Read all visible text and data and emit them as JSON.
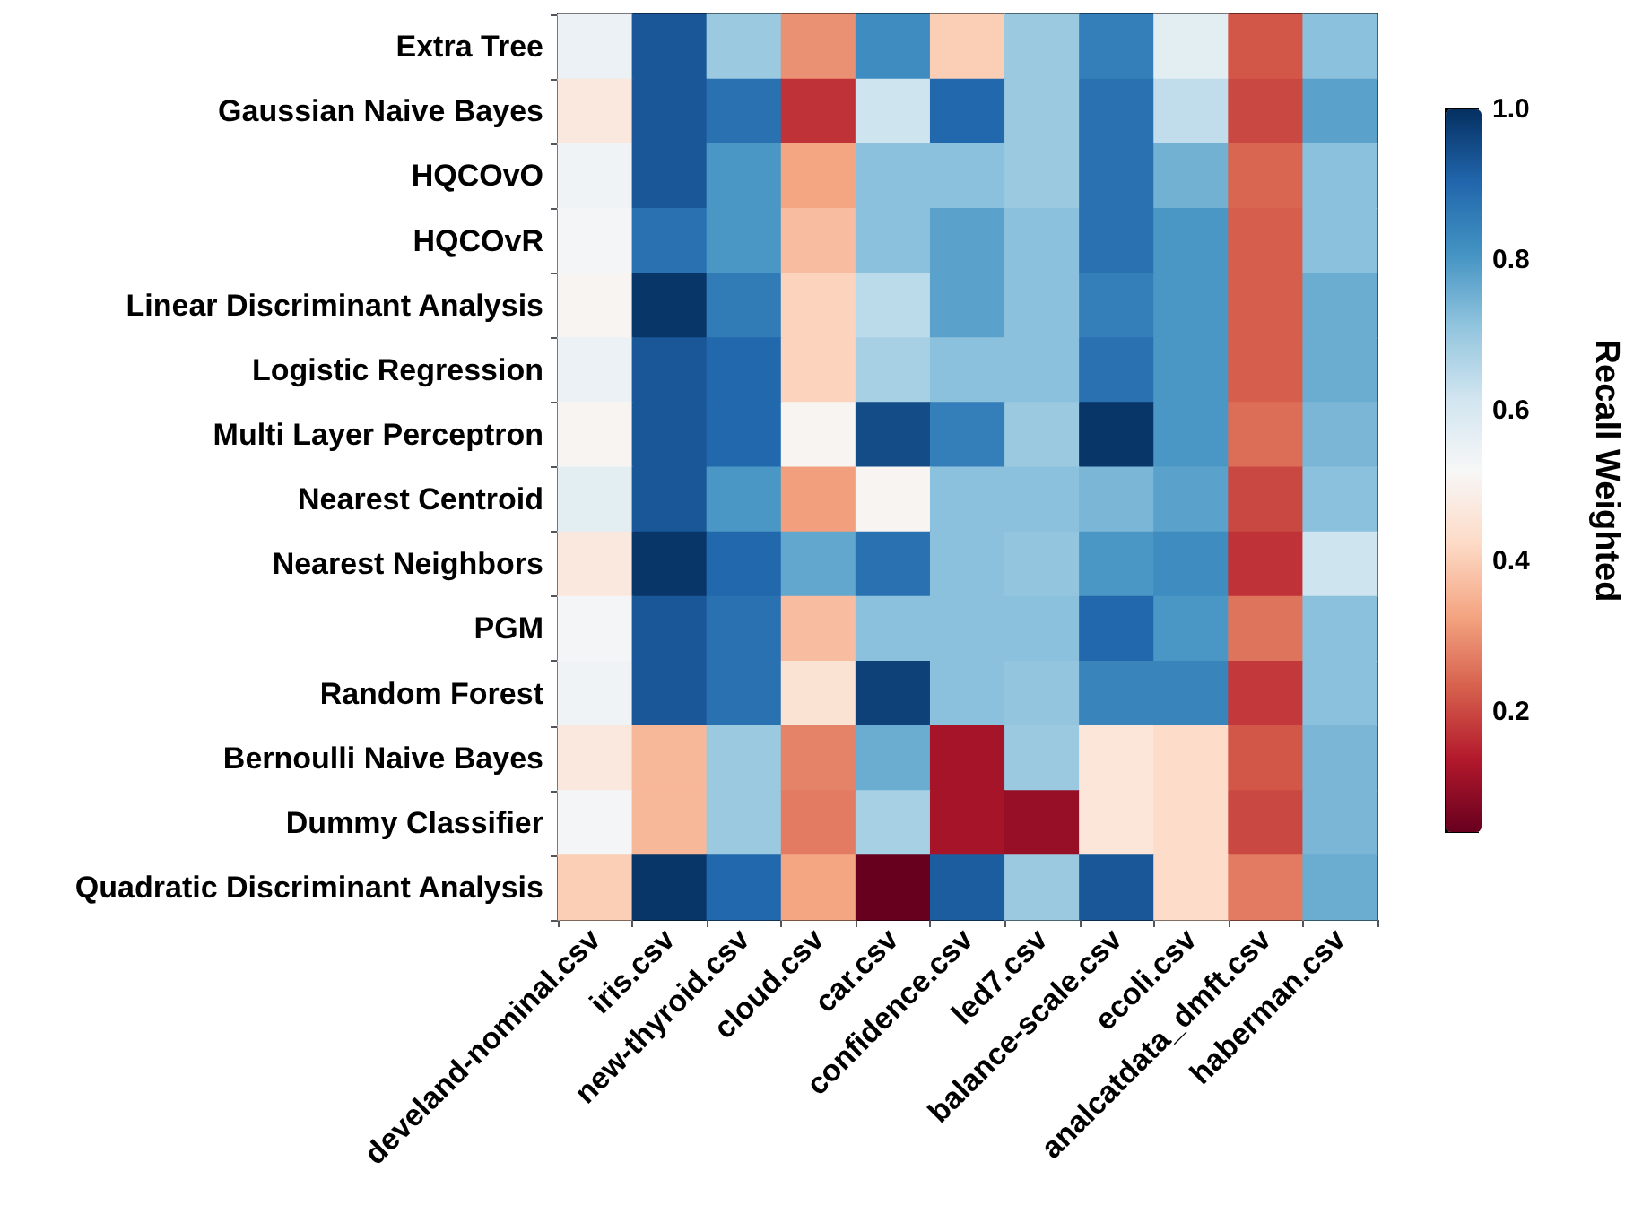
{
  "chart_data": {
    "type": "heatmap",
    "clabel": "Recall Weighted",
    "categories": [
      "develand-nominal.csv",
      "iris.csv",
      "new-thyroid.csv",
      "cloud.csv",
      "car.csv",
      "confidence.csv",
      "led7.csv",
      "balance-scale.csv",
      "ecoli.csv",
      "analcatdata_dmft.csv",
      "haberman.csv"
    ],
    "y_categories": [
      "Extra Tree",
      "Gaussian Naive Bayes",
      "HQCOvO",
      "HQCOvR",
      "Linear Discriminant Analysis",
      "Logistic Regression",
      "Multi Layer Perceptron",
      "Nearest Centroid",
      "Nearest Neighbors",
      "PGM",
      "Random Forest",
      "Bernoulli Naive Bayes",
      "Dummy Classifier",
      "Quadratic Discriminant Analysis"
    ],
    "cells": [
      [
        0.55,
        0.93,
        0.7,
        0.3,
        0.82,
        0.4,
        0.7,
        0.85,
        0.57,
        0.22,
        0.72
      ],
      [
        0.47,
        0.93,
        0.88,
        0.17,
        0.62,
        0.9,
        0.7,
        0.88,
        0.64,
        0.2,
        0.78
      ],
      [
        0.54,
        0.93,
        0.8,
        0.33,
        0.72,
        0.72,
        0.7,
        0.88,
        0.75,
        0.24,
        0.72
      ],
      [
        0.53,
        0.88,
        0.8,
        0.37,
        0.72,
        0.78,
        0.72,
        0.88,
        0.8,
        0.23,
        0.72
      ],
      [
        0.51,
        0.99,
        0.86,
        0.41,
        0.65,
        0.78,
        0.72,
        0.85,
        0.8,
        0.23,
        0.76
      ],
      [
        0.55,
        0.93,
        0.9,
        0.41,
        0.68,
        0.72,
        0.72,
        0.88,
        0.8,
        0.23,
        0.76
      ],
      [
        0.51,
        0.93,
        0.9,
        0.51,
        0.95,
        0.85,
        0.7,
        0.99,
        0.8,
        0.25,
        0.74
      ],
      [
        0.57,
        0.93,
        0.8,
        0.32,
        0.51,
        0.72,
        0.72,
        0.74,
        0.78,
        0.2,
        0.72
      ],
      [
        0.47,
        0.99,
        0.9,
        0.77,
        0.88,
        0.72,
        0.71,
        0.8,
        0.82,
        0.17,
        0.62
      ],
      [
        0.53,
        0.93,
        0.88,
        0.37,
        0.72,
        0.72,
        0.72,
        0.9,
        0.8,
        0.26,
        0.72
      ],
      [
        0.54,
        0.93,
        0.88,
        0.45,
        0.97,
        0.72,
        0.71,
        0.84,
        0.84,
        0.18,
        0.72
      ],
      [
        0.47,
        0.36,
        0.7,
        0.28,
        0.76,
        0.12,
        0.7,
        0.46,
        0.43,
        0.22,
        0.74
      ],
      [
        0.53,
        0.36,
        0.7,
        0.27,
        0.68,
        0.12,
        0.1,
        0.46,
        0.43,
        0.2,
        0.74
      ],
      [
        0.4,
        0.99,
        0.9,
        0.33,
        0.04,
        0.92,
        0.7,
        0.93,
        0.43,
        0.27,
        0.76
      ]
    ],
    "clim": [
      0.04,
      1.0
    ],
    "cticks": [
      0.2,
      0.4,
      0.6,
      0.8,
      {
        "value": 1,
        "label": "1.0"
      }
    ]
  }
}
